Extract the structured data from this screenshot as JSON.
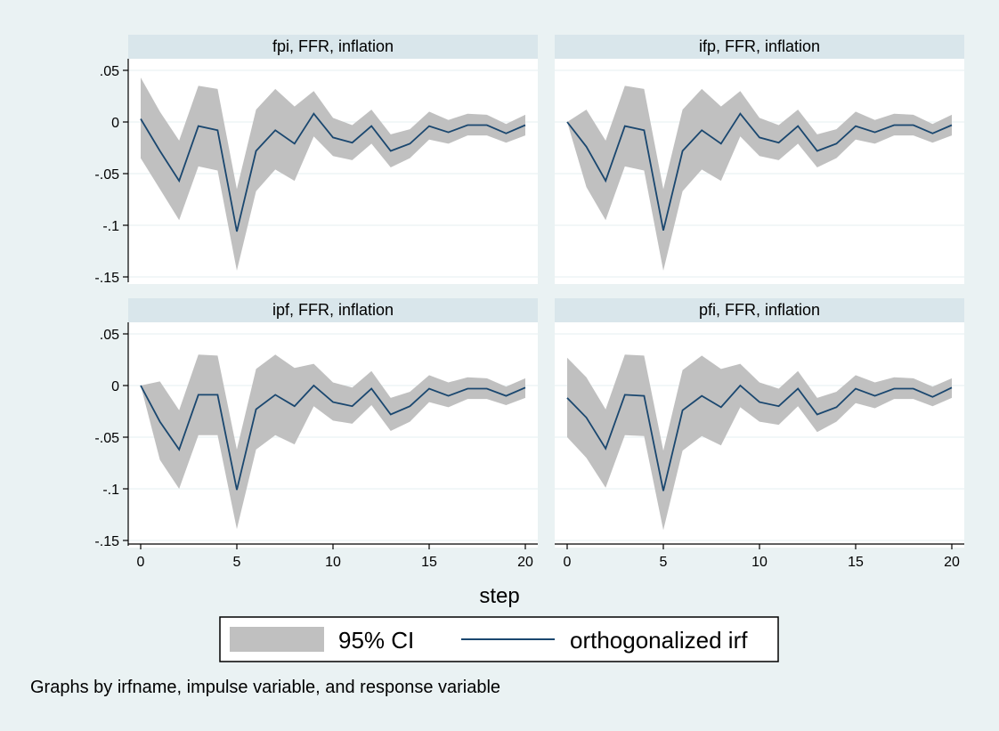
{
  "chart_data": {
    "type": "area",
    "panels": [
      {
        "title": "fpi, FFR, inflation",
        "irf": [
          0.003,
          -0.028,
          -0.057,
          -0.004,
          -0.008,
          -0.106,
          -0.028,
          -0.008,
          -0.021,
          0.008,
          -0.015,
          -0.02,
          -0.004,
          -0.028,
          -0.021,
          -0.004,
          -0.01,
          -0.003,
          -0.003,
          -0.011,
          -0.003
        ],
        "ci_upper": [
          0.043,
          0.01,
          -0.018,
          0.035,
          0.032,
          -0.065,
          0.012,
          0.032,
          0.015,
          0.03,
          0.004,
          -0.003,
          0.012,
          -0.012,
          -0.007,
          0.01,
          0.002,
          0.008,
          0.007,
          -0.002,
          0.007
        ],
        "ci_lower": [
          -0.035,
          -0.065,
          -0.095,
          -0.043,
          -0.047,
          -0.144,
          -0.067,
          -0.046,
          -0.057,
          -0.014,
          -0.033,
          -0.037,
          -0.021,
          -0.044,
          -0.035,
          -0.017,
          -0.021,
          -0.013,
          -0.013,
          -0.02,
          -0.013
        ]
      },
      {
        "title": "ifp, FFR, inflation",
        "irf": [
          0.0,
          -0.024,
          -0.057,
          -0.004,
          -0.008,
          -0.105,
          -0.028,
          -0.008,
          -0.021,
          0.008,
          -0.015,
          -0.02,
          -0.004,
          -0.028,
          -0.021,
          -0.004,
          -0.01,
          -0.003,
          -0.003,
          -0.011,
          -0.003
        ],
        "ci_upper": [
          0.0,
          0.012,
          -0.018,
          0.035,
          0.032,
          -0.065,
          0.012,
          0.032,
          0.015,
          0.03,
          0.004,
          -0.003,
          0.012,
          -0.012,
          -0.007,
          0.01,
          0.002,
          0.008,
          0.007,
          -0.002,
          0.007
        ],
        "ci_lower": [
          0.0,
          -0.063,
          -0.095,
          -0.043,
          -0.047,
          -0.144,
          -0.067,
          -0.046,
          -0.057,
          -0.014,
          -0.033,
          -0.037,
          -0.021,
          -0.044,
          -0.035,
          -0.017,
          -0.021,
          -0.013,
          -0.013,
          -0.02,
          -0.013
        ]
      },
      {
        "title": "ipf, FFR, inflation",
        "irf": [
          0.0,
          -0.035,
          -0.062,
          -0.009,
          -0.009,
          -0.101,
          -0.023,
          -0.009,
          -0.02,
          0.0,
          -0.016,
          -0.02,
          -0.003,
          -0.028,
          -0.02,
          -0.003,
          -0.01,
          -0.003,
          -0.003,
          -0.01,
          -0.002
        ],
        "ci_upper": [
          0.0,
          0.004,
          -0.024,
          0.03,
          0.029,
          -0.062,
          0.016,
          0.03,
          0.017,
          0.021,
          0.003,
          -0.002,
          0.014,
          -0.012,
          -0.006,
          0.01,
          0.003,
          0.008,
          0.007,
          -0.001,
          0.007
        ],
        "ci_lower": [
          0.0,
          -0.072,
          -0.1,
          -0.048,
          -0.048,
          -0.139,
          -0.062,
          -0.048,
          -0.057,
          -0.02,
          -0.034,
          -0.037,
          -0.019,
          -0.044,
          -0.035,
          -0.016,
          -0.021,
          -0.013,
          -0.013,
          -0.019,
          -0.012
        ]
      },
      {
        "title": "pfi, FFR, inflation",
        "irf": [
          -0.012,
          -0.031,
          -0.061,
          -0.009,
          -0.01,
          -0.102,
          -0.024,
          -0.01,
          -0.021,
          0.0,
          -0.016,
          -0.02,
          -0.003,
          -0.028,
          -0.021,
          -0.003,
          -0.01,
          -0.003,
          -0.003,
          -0.011,
          -0.002
        ],
        "ci_upper": [
          0.027,
          0.008,
          -0.023,
          0.03,
          0.029,
          -0.063,
          0.015,
          0.029,
          0.016,
          0.021,
          0.003,
          -0.003,
          0.014,
          -0.012,
          -0.006,
          0.01,
          0.003,
          0.008,
          0.007,
          -0.001,
          0.007
        ],
        "ci_lower": [
          -0.05,
          -0.07,
          -0.099,
          -0.048,
          -0.049,
          -0.14,
          -0.063,
          -0.049,
          -0.058,
          -0.021,
          -0.035,
          -0.038,
          -0.02,
          -0.045,
          -0.035,
          -0.017,
          -0.022,
          -0.013,
          -0.013,
          -0.02,
          -0.012
        ]
      }
    ],
    "x": [
      0,
      1,
      2,
      3,
      4,
      5,
      6,
      7,
      8,
      9,
      10,
      11,
      12,
      13,
      14,
      15,
      16,
      17,
      18,
      19,
      20
    ],
    "xlabel": "step",
    "xticks": [
      0,
      5,
      10,
      15,
      20
    ],
    "xtick_labels": [
      "0",
      "5",
      "10",
      "15",
      "20"
    ],
    "xlim": [
      0,
      20
    ],
    "yticks": [
      0.05,
      0,
      -0.05,
      -0.1,
      -0.15
    ],
    "ytick_labels": [
      ".05",
      "0",
      "-.05",
      "-.1",
      "-.15"
    ],
    "ylim": [
      -0.15,
      0.05
    ],
    "grid": true,
    "legend": {
      "position": "bottom",
      "entries": [
        {
          "label": "95% CI",
          "kind": "area"
        },
        {
          "label": "orthogonalized irf",
          "kind": "line"
        }
      ]
    },
    "note": "Graphs by irfname, impulse variable, and response variable",
    "colors": {
      "background": "#eaf2f3",
      "plot_area": "#ffffff",
      "panel_header": "#d9e6eb",
      "ci_fill": "#c0c0c0",
      "irf_line": "#1a476f",
      "grid": "#eaf2f3"
    }
  }
}
